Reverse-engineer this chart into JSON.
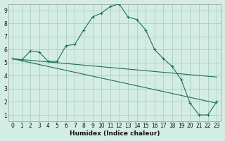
{
  "xlabel": "Humidex (Indice chaleur)",
  "background_color": "#d4ede4",
  "grid_color": "#aacfbf",
  "line_color": "#1a6e5e",
  "xlim": [
    -0.5,
    23.5
  ],
  "ylim": [
    0.5,
    9.5
  ],
  "xticks": [
    0,
    1,
    2,
    3,
    4,
    5,
    6,
    7,
    8,
    9,
    10,
    11,
    12,
    13,
    14,
    15,
    16,
    17,
    18,
    19,
    20,
    21,
    22,
    23
  ],
  "yticks": [
    1,
    2,
    3,
    4,
    5,
    6,
    7,
    8,
    9
  ],
  "line1_x": [
    0,
    1,
    2,
    3,
    4,
    5,
    6,
    7,
    8,
    9,
    10,
    11,
    12,
    13,
    14,
    15,
    16,
    17,
    18,
    19,
    20,
    21,
    22,
    23
  ],
  "line1_y": [
    5.3,
    5.2,
    5.9,
    5.8,
    5.1,
    5.1,
    6.3,
    6.4,
    7.5,
    8.5,
    8.8,
    9.3,
    9.5,
    8.5,
    8.3,
    7.5,
    6.0,
    5.3,
    4.7,
    3.7,
    1.9,
    1.0,
    1.0,
    2.0
  ],
  "line2_x": [
    0,
    23
  ],
  "line2_y": [
    5.3,
    3.9
  ],
  "line3_x": [
    0,
    23
  ],
  "line3_y": [
    5.3,
    1.9
  ]
}
